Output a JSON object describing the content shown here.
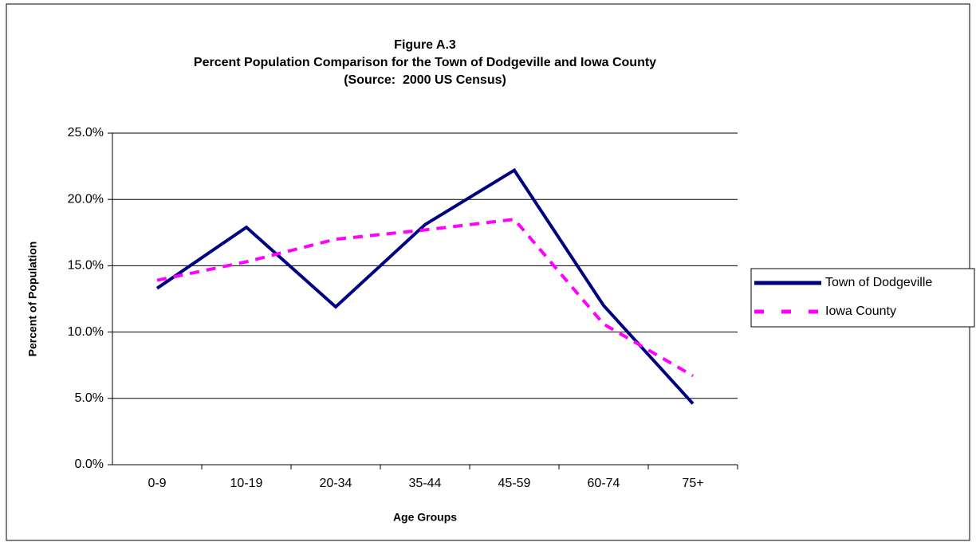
{
  "chart_data": {
    "type": "line",
    "title": [
      "Figure A.3",
      "Percent Population Comparison for the Town of Dodgeville and Iowa County",
      "(Source:  2000 US Census)"
    ],
    "x_label": "Age Groups",
    "y_label": "Percent of Population",
    "categories": [
      "0-9",
      "10-19",
      "20-34",
      "35-44",
      "45-59",
      "60-74",
      "75+"
    ],
    "series": [
      {
        "name": "Town of Dodgeville",
        "color": "#000080",
        "dashed": false,
        "values": [
          13.3,
          17.9,
          11.9,
          18.1,
          22.2,
          12.0,
          4.6
        ]
      },
      {
        "name": "Iowa County",
        "color": "#ff00ff",
        "dashed": true,
        "values": [
          13.9,
          15.3,
          17.0,
          17.7,
          18.5,
          10.6,
          6.7
        ]
      }
    ],
    "ylim": [
      0,
      25
    ],
    "yticks": [
      {
        "value": 0,
        "label": "0.0%"
      },
      {
        "value": 5,
        "label": "5.0%"
      },
      {
        "value": 10,
        "label": "10.0%"
      },
      {
        "value": 15,
        "label": "15.0%"
      },
      {
        "value": 20,
        "label": "20.0%"
      },
      {
        "value": 25,
        "label": "25.0%"
      }
    ],
    "grid": true,
    "legend": "right"
  }
}
